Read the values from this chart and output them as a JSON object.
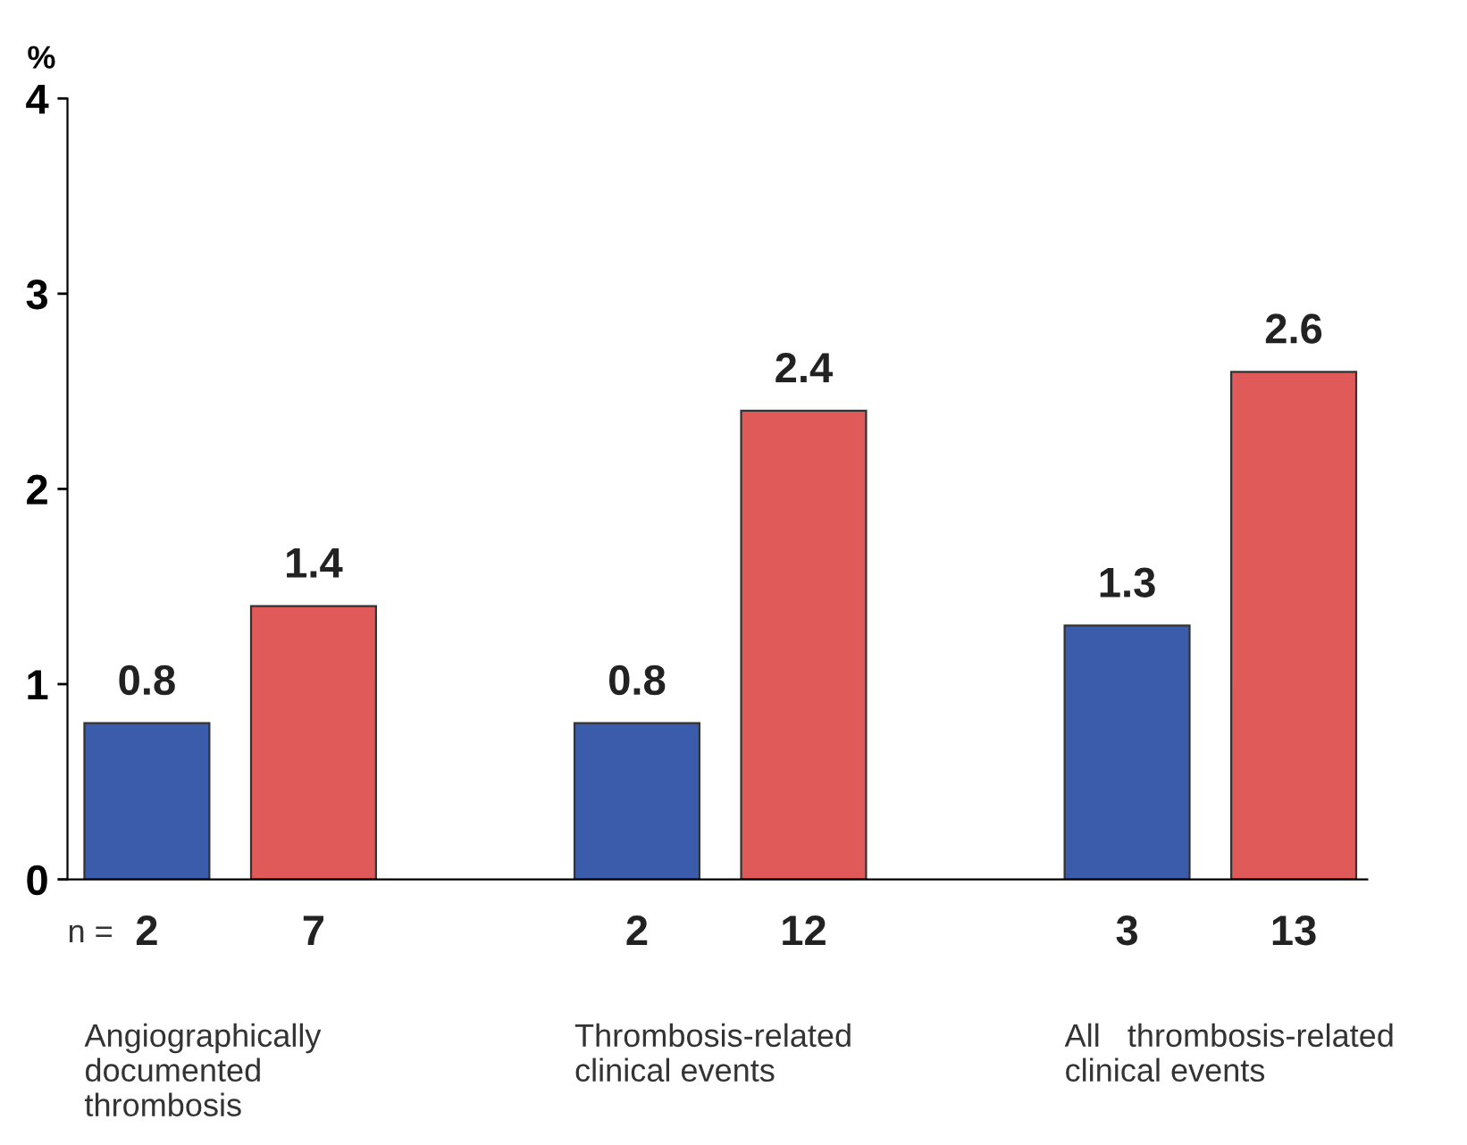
{
  "chart_data": {
    "type": "bar",
    "ylabel": "%",
    "categories": [
      "Angiographically\ndocumented\nthrombosis",
      "Thrombosis-related\nclinical events",
      "All   thrombosis-related\nclinical events"
    ],
    "series": [
      {
        "color": "#3a5cab",
        "values": [
          0.8,
          0.8,
          1.3
        ]
      },
      {
        "color": "#e05a5a",
        "values": [
          1.4,
          2.4,
          2.6
        ]
      }
    ],
    "ylim": [
      0,
      4
    ],
    "yticks": [
      0,
      1,
      2,
      3,
      4
    ],
    "grid": false,
    "data_labels": true,
    "annotations": [
      "n =",
      "2",
      "7",
      "2",
      "12",
      "3",
      "13"
    ]
  }
}
